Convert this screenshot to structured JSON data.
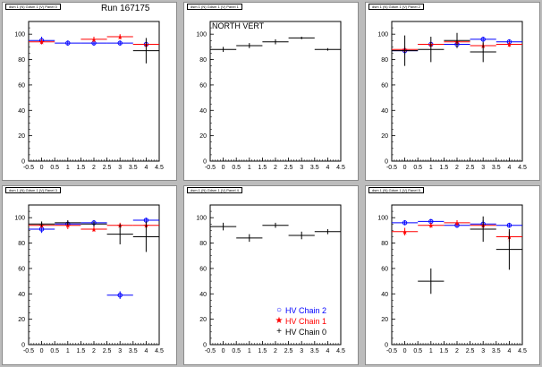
{
  "run_label": "Run 167175",
  "north_vert_label": "NORTH VERT",
  "colors": {
    "chain2": "#0000ff",
    "chain1": "#ff0000",
    "chain0": "#000000"
  },
  "legend": [
    {
      "label": "HV Chain 2",
      "marker": "open-circle",
      "color": "#0000ff"
    },
    {
      "label": "HV Chain 1",
      "marker": "star",
      "color": "#ff0000"
    },
    {
      "label": "HV Chain 0",
      "marker": "plus",
      "color": "#000000"
    }
  ],
  "panels": [
    {
      "title": "dsm 1 (N) Gdsm 1 (V) Panel 0"
    },
    {
      "title": "dsm 1 (N) Gdsm 1 (V) Panel 1"
    },
    {
      "title": "dsm 1 (N) Gdsm 1 (V) Panel 2"
    },
    {
      "title": "dsm 1 (N) Gdsm 1 (V) Panel 3"
    },
    {
      "title": "dsm 1 (N) Gdsm 1 (V) Panel 4"
    },
    {
      "title": "dsm 1 (N) Gdsm 1 (V) Panel 5"
    }
  ],
  "chart_data": [
    {
      "type": "scatter",
      "xlim": [
        -0.5,
        4.5
      ],
      "ylim": [
        0,
        110
      ],
      "xticks": [
        "-0.5",
        "0",
        "0.5",
        "1",
        "1.5",
        "2",
        "2.5",
        "3",
        "3.5",
        "4",
        "4.5"
      ],
      "yticks": [
        "0",
        "20",
        "40",
        "60",
        "80",
        "100"
      ],
      "series": [
        {
          "name": "HV Chain 2",
          "color": "#0000ff",
          "x": [
            0,
            1,
            2,
            3,
            4
          ],
          "y": [
            95,
            93,
            93,
            93,
            92
          ],
          "yerr": [
            3,
            2,
            2,
            2,
            2
          ]
        },
        {
          "name": "HV Chain 1",
          "color": "#ff0000",
          "x": [
            0,
            2,
            3,
            4
          ],
          "y": [
            94,
            96,
            98,
            92
          ],
          "yerr": [
            2,
            2,
            2,
            2
          ]
        },
        {
          "name": "HV Chain 0",
          "color": "#000000",
          "x": [
            4
          ],
          "y": [
            87
          ],
          "yerr": [
            10
          ]
        }
      ]
    },
    {
      "type": "scatter",
      "xlim": [
        -0.5,
        4.5
      ],
      "ylim": [
        0,
        110
      ],
      "xticks": [
        "-0.5",
        "0",
        "0.5",
        "1",
        "1.5",
        "2",
        "2.5",
        "3",
        "3.5",
        "4",
        "4.5"
      ],
      "yticks": [
        "0",
        "20",
        "40",
        "60",
        "80",
        "100"
      ],
      "series": [
        {
          "name": "HV Chain 0",
          "color": "#000000",
          "x": [
            0,
            1,
            2,
            3,
            4
          ],
          "y": [
            88,
            91,
            94,
            97,
            88
          ],
          "yerr": [
            2,
            2,
            2,
            1,
            1
          ]
        }
      ]
    },
    {
      "type": "scatter",
      "xlim": [
        -0.5,
        4.5
      ],
      "ylim": [
        0,
        110
      ],
      "xticks": [
        "-0.5",
        "0",
        "0.5",
        "1",
        "1.5",
        "2",
        "2.5",
        "3",
        "3.5",
        "4",
        "4.5"
      ],
      "yticks": [
        "0",
        "20",
        "40",
        "60",
        "80",
        "100"
      ],
      "series": [
        {
          "name": "HV Chain 2",
          "color": "#0000ff",
          "x": [
            0,
            1,
            2,
            3,
            4
          ],
          "y": [
            87,
            92,
            92,
            96,
            94
          ],
          "yerr": [
            3,
            2,
            2,
            2,
            2
          ]
        },
        {
          "name": "HV Chain 1",
          "color": "#ff0000",
          "x": [
            0,
            1,
            2,
            3,
            4
          ],
          "y": [
            88,
            92,
            94,
            91,
            92
          ],
          "yerr": [
            2,
            2,
            2,
            2,
            2
          ]
        },
        {
          "name": "HV Chain 0",
          "color": "#000000",
          "x": [
            0,
            1,
            2,
            3
          ],
          "y": [
            87,
            88,
            95,
            86
          ],
          "yerr": [
            12,
            10,
            6,
            8
          ]
        }
      ]
    },
    {
      "type": "scatter",
      "xlim": [
        -0.5,
        4.5
      ],
      "ylim": [
        0,
        110
      ],
      "xticks": [
        "-0.5",
        "0",
        "0.5",
        "1",
        "1.5",
        "2",
        "2.5",
        "3",
        "3.5",
        "4",
        "4.5"
      ],
      "yticks": [
        "0",
        "20",
        "40",
        "60",
        "80",
        "100"
      ],
      "series": [
        {
          "name": "HV Chain 2",
          "color": "#0000ff",
          "x": [
            0,
            1,
            2,
            3,
            4
          ],
          "y": [
            91,
            95,
            96,
            39,
            98
          ],
          "yerr": [
            3,
            2,
            2,
            3,
            2
          ]
        },
        {
          "name": "HV Chain 1",
          "color": "#ff0000",
          "x": [
            0,
            1,
            2,
            3,
            4
          ],
          "y": [
            94,
            94,
            91,
            94,
            94
          ],
          "yerr": [
            2,
            3,
            2,
            2,
            2
          ]
        },
        {
          "name": "HV Chain 0",
          "color": "#000000",
          "x": [
            0,
            1,
            2,
            3,
            4
          ],
          "y": [
            95,
            96,
            95,
            87,
            85
          ],
          "yerr": [
            2,
            2,
            2,
            8,
            12
          ]
        }
      ]
    },
    {
      "type": "scatter",
      "xlim": [
        -0.5,
        4.5
      ],
      "ylim": [
        0,
        110
      ],
      "xticks": [
        "-0.5",
        "0",
        "0.5",
        "1",
        "1.5",
        "2",
        "2.5",
        "3",
        "3.5",
        "4",
        "4.5"
      ],
      "yticks": [
        "0",
        "20",
        "40",
        "60",
        "80",
        "100"
      ],
      "series": [
        {
          "name": "HV Chain 0",
          "color": "#000000",
          "x": [
            0,
            1,
            2,
            3,
            4
          ],
          "y": [
            93,
            84,
            94,
            86,
            89
          ],
          "yerr": [
            3,
            3,
            2,
            3,
            2
          ]
        }
      ]
    },
    {
      "type": "scatter",
      "xlim": [
        -0.5,
        4.5
      ],
      "ylim": [
        0,
        110
      ],
      "xticks": [
        "-0.5",
        "0",
        "0.5",
        "1",
        "1.5",
        "2",
        "2.5",
        "3",
        "3.5",
        "4",
        "4.5"
      ],
      "yticks": [
        "0",
        "20",
        "40",
        "60",
        "80",
        "100"
      ],
      "series": [
        {
          "name": "HV Chain 2",
          "color": "#0000ff",
          "x": [
            0,
            1,
            2,
            3,
            4
          ],
          "y": [
            96,
            97,
            94,
            95,
            94
          ],
          "yerr": [
            2,
            2,
            2,
            3,
            2
          ]
        },
        {
          "name": "HV Chain 1",
          "color": "#ff0000",
          "x": [
            0,
            1,
            2,
            3,
            4
          ],
          "y": [
            89,
            94,
            96,
            94,
            85
          ],
          "yerr": [
            3,
            2,
            2,
            2,
            4
          ]
        },
        {
          "name": "HV Chain 0",
          "color": "#000000",
          "x": [
            1,
            3,
            4
          ],
          "y": [
            50,
            91,
            75
          ],
          "yerr": [
            10,
            10,
            16
          ]
        }
      ]
    }
  ]
}
